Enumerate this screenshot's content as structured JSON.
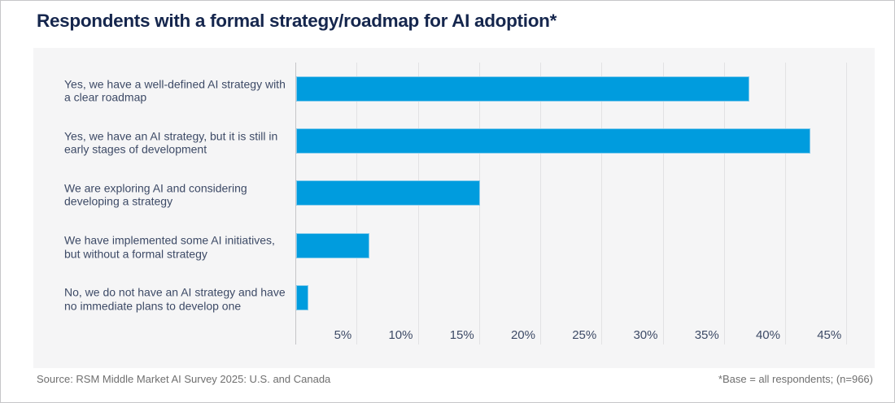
{
  "page": {
    "title": "Respondents with a formal strategy/roadmap for AI adoption*"
  },
  "chart_data": {
    "type": "bar",
    "orientation": "horizontal",
    "title": "Respondents with a formal strategy/roadmap for AI adoption*",
    "categories": [
      "Yes, we have a well-defined AI strategy with a clear roadmap",
      "Yes, we have an AI strategy, but it is still in early stages of development",
      "We are exploring AI and considering developing a strategy",
      "We have implemented some AI initiatives, but without a formal strategy",
      "No, we do not have an AI strategy and have no immediate plans to develop one"
    ],
    "values": [
      37,
      42,
      15,
      6,
      1
    ],
    "unit": "%",
    "xlabel": "",
    "ylabel": "",
    "xlim": [
      0,
      47
    ],
    "x_ticks": [
      5,
      10,
      15,
      20,
      25,
      30,
      35,
      40,
      45
    ],
    "x_tick_labels": [
      "5%",
      "10%",
      "15%",
      "20%",
      "25%",
      "30%",
      "35%",
      "40%",
      "45%"
    ],
    "grid": true,
    "legend": false,
    "colors": {
      "bar": "#009CDE",
      "bar_border": "#85CBEC",
      "panel_background": "#F5F5F6",
      "gridline": "#E2E2E4",
      "axis_line": "#C5C5C8",
      "label_text": "#3D4A66",
      "title_text": "#15264D"
    }
  },
  "footer": {
    "source": "Source: RSM Middle Market AI Survey 2025: U.S. and Canada",
    "note": "*Base = all respondents; (n=966)"
  }
}
